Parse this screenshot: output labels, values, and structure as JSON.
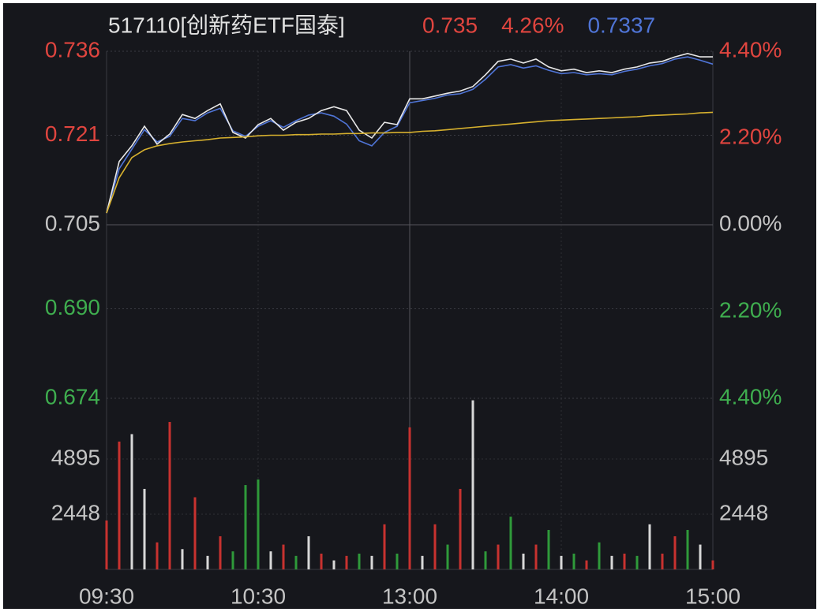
{
  "chart_data": {
    "type": "line",
    "title": "517110[创新药ETF国泰]",
    "quote": [
      {
        "text": "0.735",
        "color": "#e0453f"
      },
      {
        "text": "4.26%",
        "color": "#e0453f"
      },
      {
        "text": "0.7337",
        "color": "#4f74d6"
      }
    ],
    "up_color": "#e0453f",
    "down_color": "#3fae4f",
    "flat_color": "#c4c4c4",
    "xlim": [
      0,
      240
    ],
    "xticks": [
      {
        "value": 0,
        "label": "09:30"
      },
      {
        "value": 60,
        "label": "10:30"
      },
      {
        "value": 120,
        "label": "13:00"
      },
      {
        "value": 180,
        "label": "14:00"
      },
      {
        "value": 240,
        "label": "15:00"
      }
    ],
    "ylim": [
      0.674,
      0.736
    ],
    "yticks": [
      0.736,
      0.721,
      0.705,
      {
        "value": 0.69,
        "label": "0.690"
      },
      0.674
    ],
    "y2lim": [
      -4.4,
      4.4
    ],
    "y2ticks": [
      {
        "value": 4.4,
        "label": "4.40%"
      },
      {
        "value": 2.2,
        "label": "2.20%"
      },
      {
        "value": 0,
        "label": "0.00%"
      },
      {
        "value": -2.2,
        "label": "2.20%"
      },
      {
        "value": -4.4,
        "label": "4.40%"
      }
    ],
    "grid": true,
    "x": [
      0,
      5,
      10,
      15,
      20,
      25,
      30,
      35,
      40,
      45,
      50,
      55,
      60,
      65,
      70,
      75,
      80,
      85,
      90,
      95,
      100,
      105,
      110,
      115,
      120,
      125,
      130,
      135,
      140,
      145,
      150,
      155,
      160,
      165,
      170,
      175,
      180,
      185,
      190,
      195,
      200,
      205,
      210,
      215,
      220,
      225,
      230,
      235,
      240
    ],
    "series": [
      {
        "color": "#4f74d6",
        "values": [
          0.7071,
          0.715,
          0.7185,
          0.722,
          0.7198,
          0.7208,
          0.724,
          0.7236,
          0.725,
          0.7258,
          0.7218,
          0.7208,
          0.7226,
          0.7236,
          0.7224,
          0.7236,
          0.7246,
          0.725,
          0.7244,
          0.723,
          0.72,
          0.7191,
          0.7215,
          0.7226,
          0.7268,
          0.7272,
          0.7276,
          0.7282,
          0.7284,
          0.7292,
          0.731,
          0.7332,
          0.7336,
          0.733,
          0.7334,
          0.7326,
          0.732,
          0.7322,
          0.7318,
          0.732,
          0.7318,
          0.7324,
          0.7328,
          0.7334,
          0.7338,
          0.7346,
          0.735,
          0.7344,
          0.7337
        ]
      },
      {
        "color": "#e8e8e8",
        "values": [
          0.7071,
          0.7163,
          0.7191,
          0.7226,
          0.7194,
          0.7212,
          0.7247,
          0.724,
          0.7254,
          0.7266,
          0.7215,
          0.7205,
          0.7229,
          0.724,
          0.7219,
          0.7233,
          0.724,
          0.7254,
          0.7261,
          0.7254,
          0.7219,
          0.7205,
          0.7233,
          0.7229,
          0.7275,
          0.7275,
          0.728,
          0.7285,
          0.7289,
          0.7297,
          0.7318,
          0.7342,
          0.7346,
          0.7339,
          0.7346,
          0.7332,
          0.7325,
          0.7328,
          0.7322,
          0.7325,
          0.7322,
          0.7328,
          0.7332,
          0.7339,
          0.7342,
          0.735,
          0.7356,
          0.735,
          0.735
        ]
      },
      {
        "color": "#d6b02e",
        "values": [
          0.7071,
          0.7134,
          0.717,
          0.7184,
          0.7191,
          0.7195,
          0.7198,
          0.72,
          0.7202,
          0.7205,
          0.7206,
          0.7207,
          0.7209,
          0.721,
          0.721,
          0.7211,
          0.7211,
          0.7212,
          0.7212,
          0.7213,
          0.7213,
          0.7214,
          0.7214,
          0.7215,
          0.7215,
          0.7217,
          0.7218,
          0.722,
          0.7222,
          0.7224,
          0.7226,
          0.7228,
          0.723,
          0.7232,
          0.7234,
          0.7236,
          0.7237,
          0.7238,
          0.7239,
          0.724,
          0.7241,
          0.7242,
          0.7243,
          0.7245,
          0.7246,
          0.7247,
          0.7248,
          0.725,
          0.7251
        ]
      }
    ],
    "volume": {
      "ylim": [
        0,
        7590
      ],
      "yticks": [
        4895,
        2448
      ],
      "values": [
        2170,
        5670,
        6000,
        3570,
        1200,
        6540,
        900,
        3200,
        600,
        1470,
        800,
        3740,
        3990,
        800,
        1100,
        600,
        1470,
        700,
        400,
        600,
        700,
        600,
        2000,
        700,
        6300,
        600,
        2000,
        1100,
        3570,
        7500,
        800,
        1100,
        2340,
        700,
        1100,
        1750,
        600,
        700,
        400,
        1200,
        600,
        700,
        600,
        2000,
        700,
        1470,
        1750,
        1100,
        400
      ],
      "colors": [
        "#c8322f",
        "#c8322f",
        "#d8d8d8",
        "#d8d8d8",
        "#c8322f",
        "#c8322f",
        "#d8d8d8",
        "#c8322f",
        "#d8d8d8",
        "#c8322f",
        "#2f9a3a",
        "#2f9a3a",
        "#2f9a3a",
        "#d8d8d8",
        "#c8322f",
        "#2f9a3a",
        "#d8d8d8",
        "#c8322f",
        "#d8d8d8",
        "#c8322f",
        "#2f9a3a",
        "#d8d8d8",
        "#c8322f",
        "#2f9a3a",
        "#c8322f",
        "#d8d8d8",
        "#c8322f",
        "#2f9a3a",
        "#c8322f",
        "#d8d8d8",
        "#2f9a3a",
        "#c8322f",
        "#2f9a3a",
        "#d8d8d8",
        "#c8322f",
        "#2f9a3a",
        "#d8d8d8",
        "#2f9a3a",
        "#c8322f",
        "#2f9a3a",
        "#d8d8d8",
        "#c8322f",
        "#2f9a3a",
        "#d8d8d8",
        "#c8322f",
        "#c8322f",
        "#2f9a3a",
        "#d8d8d8",
        "#c8322f"
      ]
    }
  }
}
